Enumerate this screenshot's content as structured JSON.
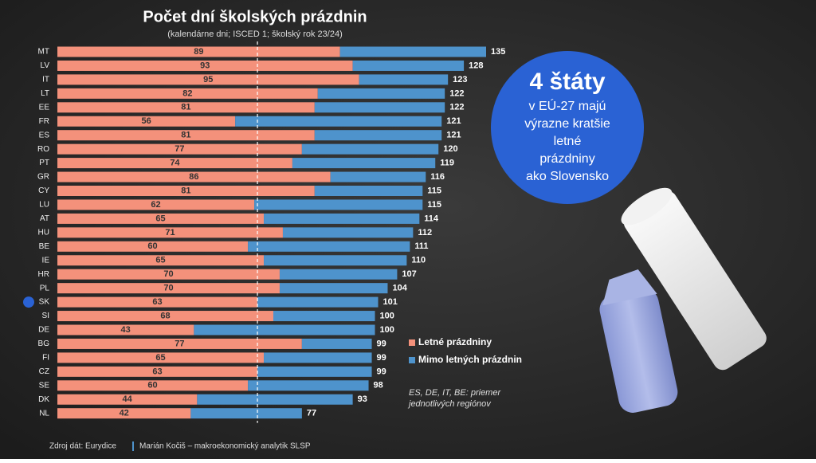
{
  "chart_data": {
    "type": "stacked_bar_h",
    "title": "Počet dní školských prázdnin",
    "subtitle": "(kalendárne dni; ISCED 1; školský rok 23/24)",
    "categories": [
      "MT",
      "LV",
      "IT",
      "LT",
      "EE",
      "FR",
      "ES",
      "RO",
      "PT",
      "GR",
      "CY",
      "LU",
      "AT",
      "HU",
      "BE",
      "IE",
      "HR",
      "PL",
      "SK",
      "SI",
      "DE",
      "BG",
      "FI",
      "CZ",
      "SE",
      "DK",
      "NL"
    ],
    "series": [
      {
        "name": "Letné prázdniny",
        "color": "#f4917b",
        "values": [
          89,
          93,
          95,
          82,
          81,
          56,
          81,
          77,
          74,
          86,
          81,
          62,
          65,
          71,
          60,
          65,
          70,
          70,
          63,
          68,
          43,
          77,
          65,
          63,
          60,
          44,
          42
        ]
      },
      {
        "name": "Mimo letných prázdnin",
        "color": "#4e93cc",
        "values": [
          46,
          35,
          28,
          40,
          41,
          65,
          40,
          43,
          45,
          30,
          34,
          53,
          49,
          41,
          51,
          45,
          37,
          34,
          38,
          32,
          57,
          22,
          34,
          36,
          38,
          49,
          35
        ]
      }
    ],
    "totals": [
      135,
      128,
      123,
      122,
      122,
      121,
      121,
      120,
      119,
      116,
      115,
      115,
      114,
      112,
      111,
      110,
      107,
      104,
      101,
      100,
      100,
      99,
      99,
      99,
      98,
      93,
      77
    ],
    "xlim": [
      0,
      135
    ],
    "highlight": "SK"
  },
  "callout": {
    "headline": "4 štáty",
    "lines": [
      "v EÚ-27 majú",
      "výrazne kratšie",
      "letné",
      "prázdniny",
      "ako Slovensko"
    ]
  },
  "note": [
    "ES, DE, IT, BE: priemer",
    "jednotlivých regiónov"
  ],
  "source": {
    "data": "Zdroj dát: Eurydice",
    "author": "Marián Kočiš – makroekonomický analytik SLSP"
  }
}
